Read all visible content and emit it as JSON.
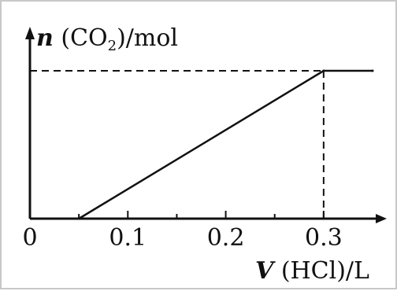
{
  "chart_data": {
    "type": "line",
    "ylabel": {
      "var": "n",
      "lead": " (CO",
      "sub": "2",
      "tail": ")/mol"
    },
    "xlabel": {
      "var": "V",
      "rest": " (HCl)/L"
    },
    "xlim": [
      0,
      0.35
    ],
    "x_ticks": [
      {
        "value": 0,
        "label": "0"
      },
      {
        "value": 0.1,
        "label": "0.1"
      },
      {
        "value": 0.2,
        "label": "0.2"
      },
      {
        "value": 0.3,
        "label": "0.3"
      }
    ],
    "series": [
      {
        "x": [
          0.05,
          0.3
        ],
        "y": [
          0,
          1
        ]
      },
      {
        "x": [
          0.3,
          0.35
        ],
        "y": [
          1,
          1
        ]
      }
    ],
    "guides": {
      "x": 0.3,
      "y": 1,
      "style": "dashed"
    },
    "y_tick_marks": false,
    "grid": false
  }
}
